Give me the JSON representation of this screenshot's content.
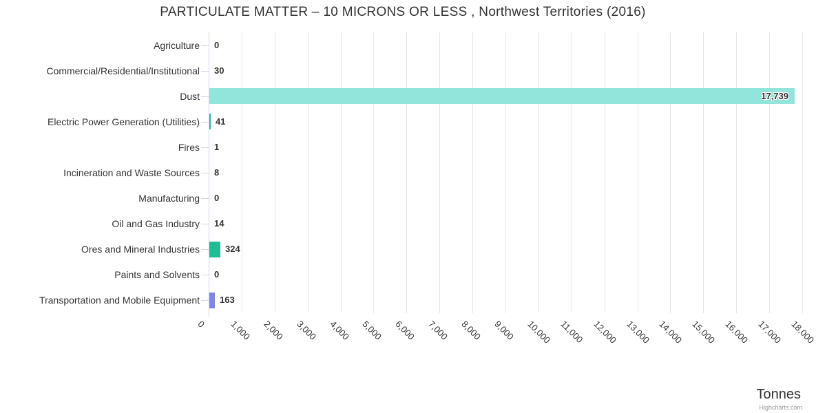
{
  "chart_data": {
    "type": "bar",
    "title": "PARTICULATE MATTER – 10 MICRONS OR LESS , Northwest Territories (2016)",
    "xlabel": "Tonnes",
    "ylabel": "",
    "xlim": [
      0,
      18000
    ],
    "tick_interval": 1000,
    "grid": true,
    "legend": "none",
    "x_ticks": [
      "0",
      "1,000",
      "2,000",
      "3,000",
      "4,000",
      "5,000",
      "6,000",
      "7,000",
      "8,000",
      "9,000",
      "10,000",
      "11,000",
      "12,000",
      "13,000",
      "14,000",
      "15,000",
      "16,000",
      "17,000",
      "18,000"
    ],
    "categories": [
      "Agriculture",
      "Commercial/Residential/Institutional",
      "Dust",
      "Electric Power Generation (Utilities)",
      "Fires",
      "Incineration and Waste Sources",
      "Manufacturing",
      "Oil and Gas Industry",
      "Ores and Mineral Industries",
      "Paints and Solvents",
      "Transportation and Mobile Equipment"
    ],
    "values": [
      0,
      30,
      17739,
      41,
      1,
      8,
      0,
      14,
      324,
      0,
      163
    ],
    "points": [
      {
        "label": "Agriculture",
        "value": 0,
        "display": "0"
      },
      {
        "label": "Commercial/Residential/Institutional",
        "value": 30,
        "display": "30"
      },
      {
        "label": "Dust",
        "value": 17739,
        "display": "17,739",
        "color": "#92e5da",
        "label_inside": true
      },
      {
        "label": "Electric Power Generation (Utilities)",
        "value": 41,
        "display": "41",
        "color": "#2ebd8f"
      },
      {
        "label": "Fires",
        "value": 1,
        "display": "1"
      },
      {
        "label": "Incineration and Waste Sources",
        "value": 8,
        "display": "8"
      },
      {
        "label": "Manufacturing",
        "value": 0,
        "display": "0"
      },
      {
        "label": "Oil and Gas Industry",
        "value": 14,
        "display": "14"
      },
      {
        "label": "Ores and Mineral Industries",
        "value": 324,
        "display": "324",
        "color": "#1ebd92"
      },
      {
        "label": "Paints and Solvents",
        "value": 0,
        "display": "0"
      },
      {
        "label": "Transportation and Mobile Equipment",
        "value": 163,
        "display": "163",
        "color": "#8085e9"
      }
    ]
  },
  "credits": "Highcharts.com",
  "theme": {
    "grid_color": "#e6e6e6",
    "axis_color": "#ccd6eb",
    "text_color": "#333333",
    "credits_color": "#999999"
  }
}
